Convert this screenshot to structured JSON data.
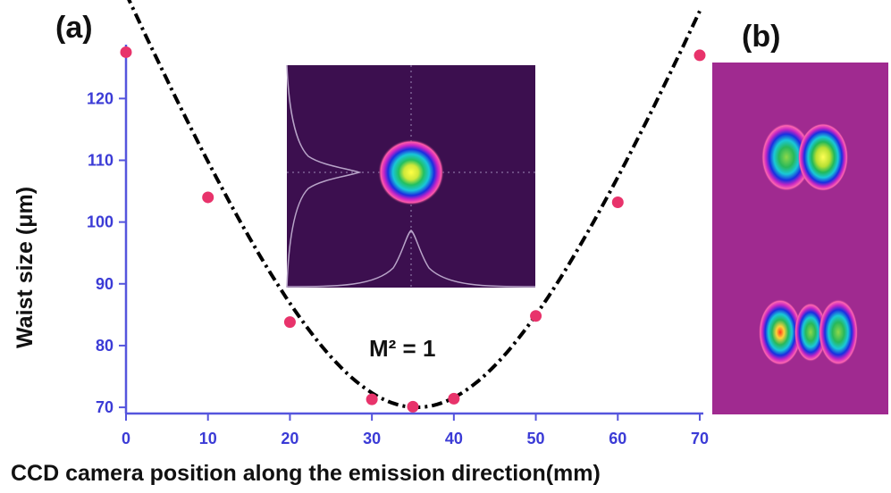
{
  "chart_data": {
    "type": "scatter",
    "panel_labels": {
      "a": "(a)",
      "b": "(b)"
    },
    "xlabel": "CCD camera position along the emission direction(mm)",
    "ylabel": "Waist size (μm)",
    "xlim": [
      0,
      70
    ],
    "ylim": [
      69,
      128
    ],
    "x_ticks": [
      0,
      10,
      20,
      30,
      40,
      50,
      60,
      70
    ],
    "y_ticks": [
      70,
      80,
      90,
      100,
      110,
      120
    ],
    "grid": false,
    "annotation": "M² = 1",
    "series": [
      {
        "points": [
          {
            "x": 0,
            "y": 127.5
          },
          {
            "x": 10,
            "y": 104
          },
          {
            "x": 20,
            "y": 83.8
          },
          {
            "x": 30,
            "y": 71.3
          },
          {
            "x": 35,
            "y": 70.1
          },
          {
            "x": 40,
            "y": 71.4
          },
          {
            "x": 50,
            "y": 84.8
          },
          {
            "x": 60,
            "y": 103.2
          },
          {
            "x": 70,
            "y": 127
          }
        ],
        "style": "markers",
        "color": "#e8336b"
      },
      {
        "style": "dash-dot fit curve",
        "color": "#000000",
        "fit": {
          "x0": 35.5,
          "w0": 70,
          "zR": 21.1
        }
      }
    ],
    "colors": {
      "axis": "#5555dd",
      "marker": "#e8336b",
      "inset_background": "#3c0f4f",
      "panel_b_background": "#a02a90"
    },
    "inset": {
      "content": "gaussian beam profile image with crosshair and profile curves"
    },
    "panel_b": {
      "content": "two higher-order beam mode images: two-lobe and three-lobe"
    }
  }
}
